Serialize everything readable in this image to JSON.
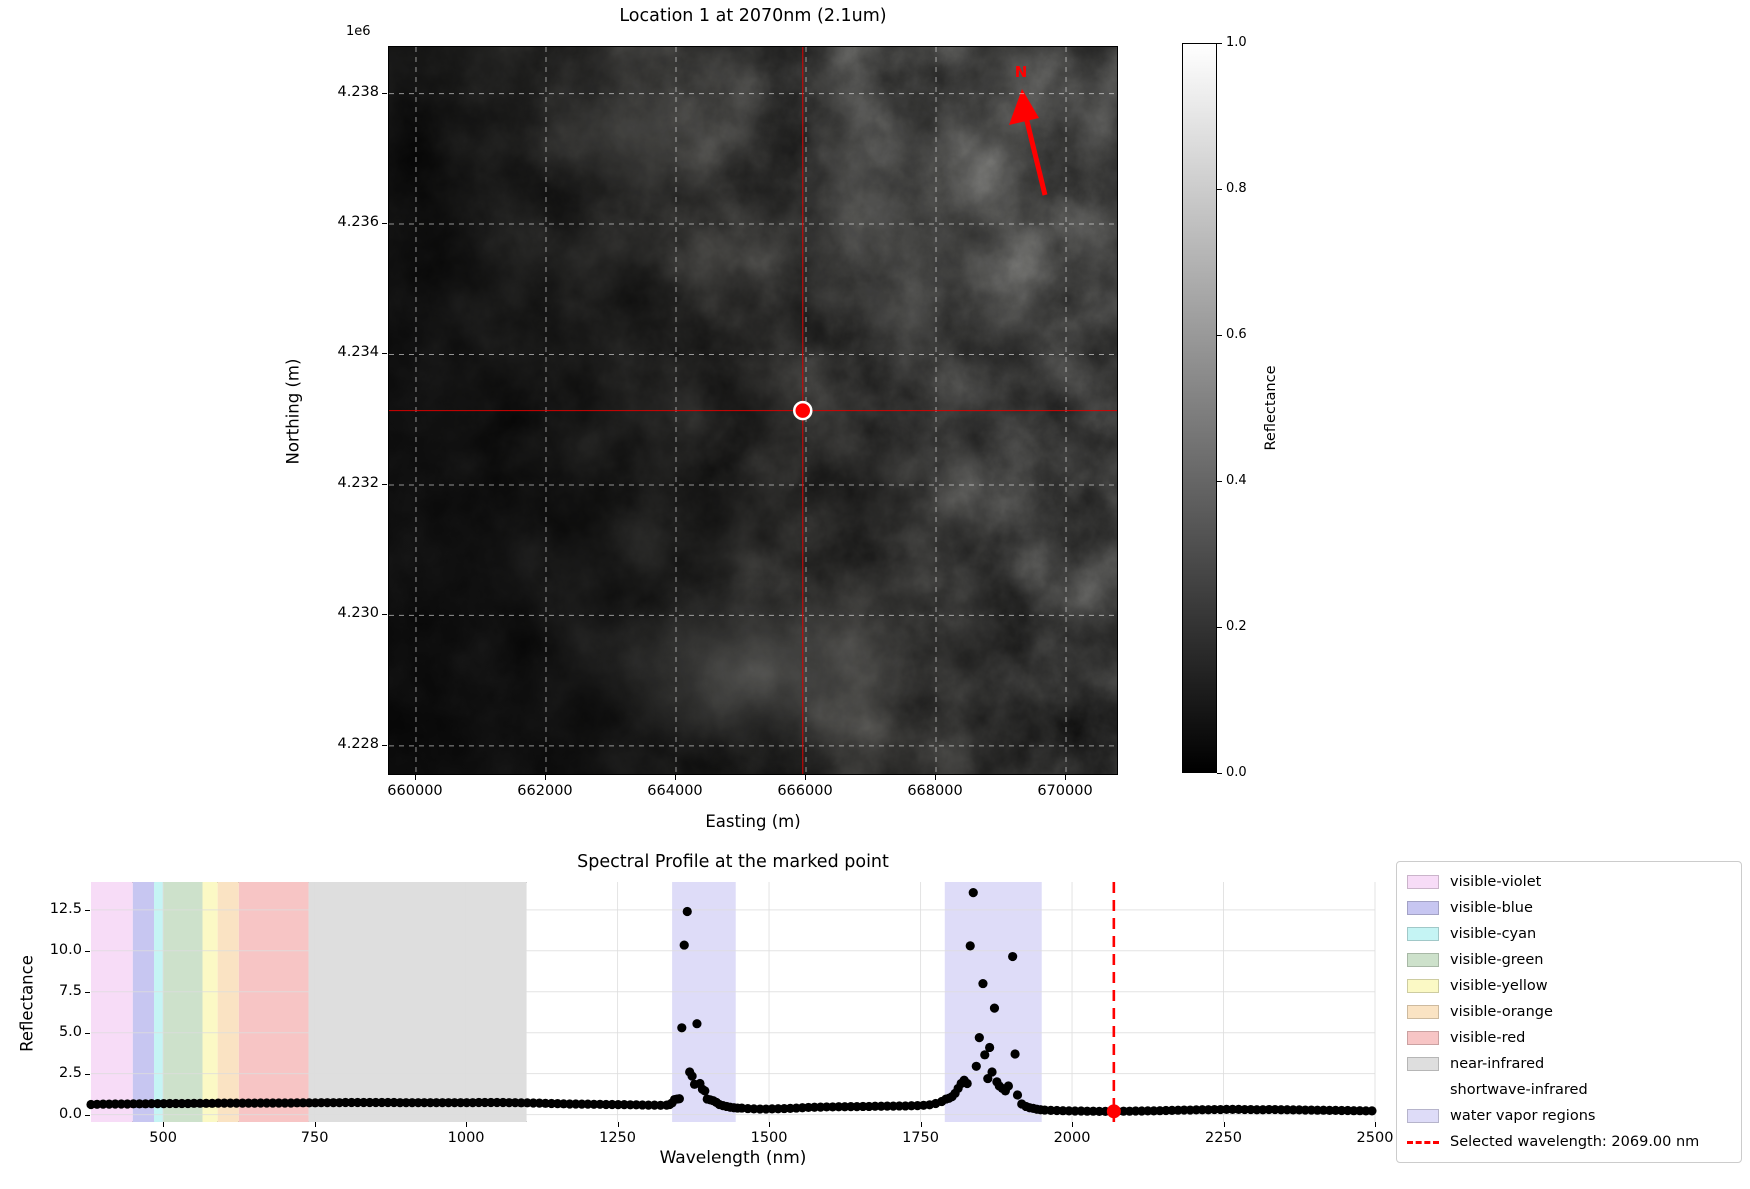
{
  "figure": {
    "map": {
      "title": "Location 1 at 2070nm (2.1um)",
      "offset_label": "1e6",
      "xlabel": "Easting (m)",
      "ylabel": "Northing (m)",
      "x_ticks": [
        "660000",
        "662000",
        "664000",
        "666000",
        "668000",
        "670000"
      ],
      "x_tick_values": [
        660000,
        662000,
        664000,
        666000,
        668000,
        670000
      ],
      "y_ticks": [
        "4.238",
        "4.236",
        "4.234",
        "4.232",
        "4.230",
        "4.228"
      ],
      "y_tick_values": [
        4238000,
        4236000,
        4234000,
        4232000,
        4230000,
        4228000
      ],
      "north_label": "N",
      "marker": {
        "easting": 665950,
        "northing": 4233140,
        "color": "#ff0000",
        "edge": "#ffffff"
      },
      "crosshair_color": "#dd0000",
      "grid_color": "rgba(255,255,255,0.55)"
    },
    "colorbar": {
      "label": "Reflectance",
      "ticks": [
        "1.0",
        "0.8",
        "0.6",
        "0.4",
        "0.2",
        "0.0"
      ],
      "cmap": "gray"
    },
    "spectral": {
      "title": "Spectral Profile at the marked point",
      "xlabel": "Wavelength (nm)",
      "ylabel": "Reflectance",
      "x_ticks": [
        "500",
        "750",
        "1000",
        "1250",
        "1500",
        "1750",
        "2000",
        "2250",
        "2500"
      ],
      "y_ticks": [
        "0.0",
        "2.5",
        "5.0",
        "7.5",
        "10.0",
        "12.5"
      ],
      "legend": [
        {
          "label": "visible-violet",
          "swatch": "patch",
          "color": "#f7dcf7"
        },
        {
          "label": "visible-blue",
          "swatch": "patch",
          "color": "#c7c6f1"
        },
        {
          "label": "visible-cyan",
          "swatch": "patch",
          "color": "#c5f4f4"
        },
        {
          "label": "visible-green",
          "swatch": "patch",
          "color": "#cde1cb"
        },
        {
          "label": "visible-yellow",
          "swatch": "patch",
          "color": "#fbf9c5"
        },
        {
          "label": "visible-orange",
          "swatch": "patch",
          "color": "#fae3c3"
        },
        {
          "label": "visible-red",
          "swatch": "patch",
          "color": "#f7c5c5"
        },
        {
          "label": "near-infrared",
          "swatch": "patch",
          "color": "#dedede"
        },
        {
          "label": "shortwave-infrared",
          "swatch": "none",
          "color": "#ffffff"
        },
        {
          "label": "water vapor regions",
          "swatch": "patch",
          "color": "#dedcf8"
        },
        {
          "label": "Selected wavelength: 2069.00 nm",
          "swatch": "line",
          "color": "#ff0000"
        }
      ]
    }
  },
  "chart_data": {
    "type": "scatter",
    "title": "Spectral Profile at the marked point",
    "xlabel": "Wavelength (nm)",
    "ylabel": "Reflectance",
    "xlim": [
      381,
      2500
    ],
    "ylim": [
      -0.45,
      14.2
    ],
    "x_tick_values": [
      500,
      750,
      1000,
      1250,
      1500,
      1750,
      2000,
      2250,
      2500
    ],
    "y_tick_values": [
      0.0,
      2.5,
      5.0,
      7.5,
      10.0,
      12.5
    ],
    "grid": true,
    "legend_position": "outside-right",
    "bands": [
      {
        "name": "visible-violet",
        "range": [
          381,
          450
        ],
        "color": "#f7dcf7"
      },
      {
        "name": "visible-blue",
        "range": [
          450,
          485
        ],
        "color": "#c7c6f1"
      },
      {
        "name": "visible-cyan",
        "range": [
          485,
          500
        ],
        "color": "#c5f4f4"
      },
      {
        "name": "visible-green",
        "range": [
          500,
          565
        ],
        "color": "#cde1cb"
      },
      {
        "name": "visible-yellow",
        "range": [
          565,
          590
        ],
        "color": "#fbf9c5"
      },
      {
        "name": "visible-orange",
        "range": [
          590,
          625
        ],
        "color": "#fae3c3"
      },
      {
        "name": "visible-red",
        "range": [
          625,
          740
        ],
        "color": "#f7c5c5"
      },
      {
        "name": "near-infrared",
        "range": [
          740,
          1100
        ],
        "color": "#dedede"
      },
      {
        "name": "shortwave-infrared",
        "range": [
          1100,
          2500
        ],
        "color": "#ffffff"
      },
      {
        "name": "water-vapor-1",
        "range": [
          1340,
          1445
        ],
        "color": "#dedcf8"
      },
      {
        "name": "water-vapor-2",
        "range": [
          1790,
          1950
        ],
        "color": "#dedcf8"
      }
    ],
    "selected_wavelength": {
      "value_nm": 2069.0,
      "reflectance": 0.2,
      "line_color": "#ff0000"
    },
    "series": [
      {
        "name": "spectrum",
        "marker": "point",
        "color": "#000000",
        "points": [
          [
            381,
            0.62
          ],
          [
            391,
            0.63
          ],
          [
            401,
            0.64
          ],
          [
            411,
            0.64
          ],
          [
            421,
            0.65
          ],
          [
            431,
            0.65
          ],
          [
            441,
            0.65
          ],
          [
            451,
            0.66
          ],
          [
            461,
            0.66
          ],
          [
            471,
            0.66
          ],
          [
            481,
            0.67
          ],
          [
            491,
            0.67
          ],
          [
            501,
            0.67
          ],
          [
            511,
            0.68
          ],
          [
            521,
            0.68
          ],
          [
            531,
            0.68
          ],
          [
            541,
            0.68
          ],
          [
            551,
            0.69
          ],
          [
            561,
            0.69
          ],
          [
            571,
            0.69
          ],
          [
            581,
            0.69
          ],
          [
            591,
            0.7
          ],
          [
            601,
            0.7
          ],
          [
            611,
            0.7
          ],
          [
            621,
            0.7
          ],
          [
            631,
            0.7
          ],
          [
            641,
            0.7
          ],
          [
            651,
            0.7
          ],
          [
            661,
            0.71
          ],
          [
            671,
            0.71
          ],
          [
            681,
            0.71
          ],
          [
            691,
            0.71
          ],
          [
            701,
            0.71
          ],
          [
            711,
            0.71
          ],
          [
            721,
            0.72
          ],
          [
            731,
            0.72
          ],
          [
            741,
            0.72
          ],
          [
            751,
            0.72
          ],
          [
            761,
            0.73
          ],
          [
            771,
            0.73
          ],
          [
            781,
            0.73
          ],
          [
            791,
            0.73
          ],
          [
            801,
            0.74
          ],
          [
            811,
            0.74
          ],
          [
            821,
            0.74
          ],
          [
            831,
            0.74
          ],
          [
            841,
            0.74
          ],
          [
            851,
            0.74
          ],
          [
            861,
            0.74
          ],
          [
            871,
            0.74
          ],
          [
            881,
            0.74
          ],
          [
            891,
            0.73
          ],
          [
            901,
            0.73
          ],
          [
            911,
            0.73
          ],
          [
            921,
            0.73
          ],
          [
            931,
            0.73
          ],
          [
            941,
            0.73
          ],
          [
            951,
            0.73
          ],
          [
            961,
            0.73
          ],
          [
            971,
            0.73
          ],
          [
            981,
            0.73
          ],
          [
            991,
            0.73
          ],
          [
            1001,
            0.73
          ],
          [
            1011,
            0.73
          ],
          [
            1021,
            0.74
          ],
          [
            1031,
            0.74
          ],
          [
            1041,
            0.74
          ],
          [
            1051,
            0.74
          ],
          [
            1061,
            0.74
          ],
          [
            1071,
            0.73
          ],
          [
            1081,
            0.73
          ],
          [
            1091,
            0.72
          ],
          [
            1101,
            0.72
          ],
          [
            1111,
            0.71
          ],
          [
            1121,
            0.7
          ],
          [
            1131,
            0.69
          ],
          [
            1141,
            0.68
          ],
          [
            1151,
            0.67
          ],
          [
            1161,
            0.66
          ],
          [
            1171,
            0.65
          ],
          [
            1181,
            0.65
          ],
          [
            1191,
            0.64
          ],
          [
            1201,
            0.64
          ],
          [
            1211,
            0.63
          ],
          [
            1221,
            0.63
          ],
          [
            1231,
            0.62
          ],
          [
            1241,
            0.62
          ],
          [
            1251,
            0.61
          ],
          [
            1261,
            0.61
          ],
          [
            1271,
            0.6
          ],
          [
            1281,
            0.6
          ],
          [
            1291,
            0.59
          ],
          [
            1301,
            0.58
          ],
          [
            1311,
            0.58
          ],
          [
            1321,
            0.57
          ],
          [
            1331,
            0.58
          ],
          [
            1336,
            0.62
          ],
          [
            1340,
            0.72
          ],
          [
            1344,
            0.92
          ],
          [
            1348,
            0.95
          ],
          [
            1352,
            0.97
          ],
          [
            1356,
            5.3
          ],
          [
            1360,
            10.35
          ],
          [
            1365,
            12.4
          ],
          [
            1369,
            2.6
          ],
          [
            1373,
            2.35
          ],
          [
            1377,
            1.85
          ],
          [
            1381,
            5.55
          ],
          [
            1386,
            1.9
          ],
          [
            1390,
            1.55
          ],
          [
            1394,
            1.45
          ],
          [
            1398,
            0.95
          ],
          [
            1403,
            0.9
          ],
          [
            1408,
            0.85
          ],
          [
            1413,
            0.75
          ],
          [
            1418,
            0.62
          ],
          [
            1424,
            0.55
          ],
          [
            1430,
            0.5
          ],
          [
            1436,
            0.45
          ],
          [
            1442,
            0.42
          ],
          [
            1448,
            0.4
          ],
          [
            1455,
            0.4
          ],
          [
            1465,
            0.37
          ],
          [
            1475,
            0.35
          ],
          [
            1485,
            0.34
          ],
          [
            1495,
            0.34
          ],
          [
            1505,
            0.35
          ],
          [
            1515,
            0.36
          ],
          [
            1525,
            0.37
          ],
          [
            1535,
            0.38
          ],
          [
            1545,
            0.4
          ],
          [
            1555,
            0.42
          ],
          [
            1565,
            0.44
          ],
          [
            1575,
            0.45
          ],
          [
            1585,
            0.46
          ],
          [
            1595,
            0.47
          ],
          [
            1605,
            0.47
          ],
          [
            1615,
            0.48
          ],
          [
            1625,
            0.48
          ],
          [
            1635,
            0.49
          ],
          [
            1645,
            0.49
          ],
          [
            1655,
            0.5
          ],
          [
            1665,
            0.5
          ],
          [
            1675,
            0.51
          ],
          [
            1685,
            0.51
          ],
          [
            1695,
            0.52
          ],
          [
            1705,
            0.52
          ],
          [
            1715,
            0.53
          ],
          [
            1725,
            0.53
          ],
          [
            1735,
            0.54
          ],
          [
            1745,
            0.55
          ],
          [
            1755,
            0.57
          ],
          [
            1765,
            0.6
          ],
          [
            1775,
            0.68
          ],
          [
            1785,
            0.8
          ],
          [
            1792,
            0.95
          ],
          [
            1797,
            1.0
          ],
          [
            1802,
            1.1
          ],
          [
            1807,
            1.3
          ],
          [
            1812,
            1.6
          ],
          [
            1817,
            1.9
          ],
          [
            1822,
            2.1
          ],
          [
            1827,
            1.9
          ],
          [
            1832,
            10.3
          ],
          [
            1837,
            13.55
          ],
          [
            1842,
            2.95
          ],
          [
            1847,
            4.7
          ],
          [
            1853,
            8.0
          ],
          [
            1856,
            3.65
          ],
          [
            1861,
            2.2
          ],
          [
            1864,
            4.1
          ],
          [
            1868,
            2.6
          ],
          [
            1872,
            6.5
          ],
          [
            1876,
            2.0
          ],
          [
            1880,
            1.75
          ],
          [
            1885,
            1.6
          ],
          [
            1890,
            1.45
          ],
          [
            1895,
            1.75
          ],
          [
            1902,
            9.65
          ],
          [
            1906,
            3.7
          ],
          [
            1910,
            1.2
          ],
          [
            1917,
            0.65
          ],
          [
            1924,
            0.5
          ],
          [
            1930,
            0.42
          ],
          [
            1936,
            0.38
          ],
          [
            1942,
            0.33
          ],
          [
            1948,
            0.3
          ],
          [
            1955,
            0.28
          ],
          [
            1965,
            0.26
          ],
          [
            1975,
            0.25
          ],
          [
            1985,
            0.24
          ],
          [
            1995,
            0.23
          ],
          [
            2005,
            0.22
          ],
          [
            2015,
            0.22
          ],
          [
            2025,
            0.21
          ],
          [
            2035,
            0.21
          ],
          [
            2045,
            0.2
          ],
          [
            2055,
            0.2
          ],
          [
            2065,
            0.2
          ],
          [
            2075,
            0.2
          ],
          [
            2085,
            0.21
          ],
          [
            2095,
            0.21
          ],
          [
            2105,
            0.22
          ],
          [
            2115,
            0.22
          ],
          [
            2125,
            0.23
          ],
          [
            2135,
            0.23
          ],
          [
            2145,
            0.24
          ],
          [
            2155,
            0.25
          ],
          [
            2165,
            0.26
          ],
          [
            2175,
            0.27
          ],
          [
            2185,
            0.28
          ],
          [
            2195,
            0.28
          ],
          [
            2205,
            0.29
          ],
          [
            2215,
            0.3
          ],
          [
            2225,
            0.3
          ],
          [
            2235,
            0.31
          ],
          [
            2245,
            0.31
          ],
          [
            2255,
            0.32
          ],
          [
            2265,
            0.32
          ],
          [
            2275,
            0.32
          ],
          [
            2285,
            0.31
          ],
          [
            2295,
            0.31
          ],
          [
            2305,
            0.3
          ],
          [
            2315,
            0.3
          ],
          [
            2325,
            0.31
          ],
          [
            2335,
            0.31
          ],
          [
            2345,
            0.3
          ],
          [
            2355,
            0.3
          ],
          [
            2365,
            0.29
          ],
          [
            2375,
            0.29
          ],
          [
            2385,
            0.28
          ],
          [
            2395,
            0.28
          ],
          [
            2405,
            0.27
          ],
          [
            2415,
            0.27
          ],
          [
            2425,
            0.26
          ],
          [
            2435,
            0.26
          ],
          [
            2445,
            0.25
          ],
          [
            2455,
            0.25
          ],
          [
            2465,
            0.24
          ],
          [
            2475,
            0.24
          ],
          [
            2485,
            0.23
          ],
          [
            2495,
            0.23
          ]
        ]
      }
    ]
  }
}
